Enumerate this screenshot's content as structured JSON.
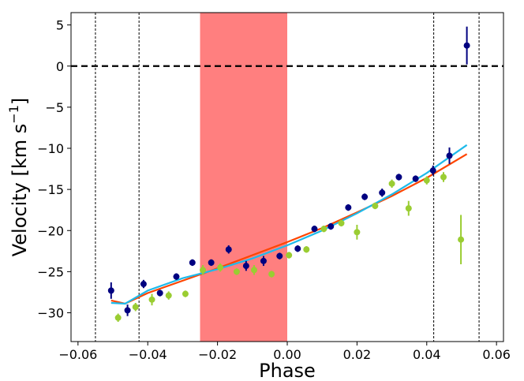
{
  "chart_data": {
    "type": "scatter",
    "xlabel": "Phase",
    "ylabel_main": "Velocity [km s",
    "ylabel_sup": "−1",
    "ylabel_close": "]",
    "xlim": [
      -0.062,
      0.062
    ],
    "ylim": [
      -33.5,
      6.5
    ],
    "grid": false,
    "x_ticks": [
      -0.06,
      -0.04,
      -0.02,
      0.0,
      0.02,
      0.04,
      0.06
    ],
    "x_tick_labels": [
      "−0.06",
      "−0.04",
      "−0.02",
      "0.00",
      "0.02",
      "0.04",
      "0.06"
    ],
    "y_ticks": [
      5,
      0,
      -5,
      -10,
      -15,
      -20,
      -25,
      -30
    ],
    "y_tick_labels": [
      "5",
      "0",
      "−5",
      "−10",
      "−15",
      "−20",
      "−25",
      "−30"
    ],
    "shaded_region": {
      "x": [
        -0.025,
        0.0
      ],
      "color": "#ff7f7f"
    },
    "vertical_lines": [
      -0.055,
      -0.0425,
      0.042,
      0.055
    ],
    "horizontal_line": 0,
    "colors": {
      "dark_blue": "#000080",
      "light_green": "#9acd32",
      "orange_model": "#ff4500",
      "cyan_model": "#1ebaea",
      "reference_line": "#000000"
    },
    "series": [
      {
        "marker": "circle",
        "color": "#000080",
        "points": [
          {
            "x": -0.0505,
            "y": -27.3,
            "err": 1.0
          },
          {
            "x": -0.0458,
            "y": -29.7,
            "err": 0.7
          },
          {
            "x": -0.0412,
            "y": -26.5,
            "err": 0.5
          },
          {
            "x": -0.0365,
            "y": -27.6,
            "err": 0.4
          },
          {
            "x": -0.0318,
            "y": -25.6,
            "err": 0.4
          },
          {
            "x": -0.0272,
            "y": -23.9,
            "err": 0.4
          },
          {
            "x": -0.0218,
            "y": -23.9,
            "err": 0.4
          },
          {
            "x": -0.0168,
            "y": -22.3,
            "err": 0.5
          },
          {
            "x": -0.0118,
            "y": -24.3,
            "err": 0.6
          },
          {
            "x": -0.0068,
            "y": -23.7,
            "err": 0.6
          },
          {
            "x": -0.0022,
            "y": -23.1,
            "err": 0.4
          },
          {
            "x": 0.003,
            "y": -22.2,
            "err": 0.4
          },
          {
            "x": 0.0078,
            "y": -19.8,
            "err": 0.4
          },
          {
            "x": 0.0125,
            "y": -19.5,
            "err": 0.4
          },
          {
            "x": 0.0175,
            "y": -17.2,
            "err": 0.4
          },
          {
            "x": 0.0222,
            "y": -15.9,
            "err": 0.4
          },
          {
            "x": 0.0272,
            "y": -15.4,
            "err": 0.5
          },
          {
            "x": 0.032,
            "y": -13.5,
            "err": 0.4
          },
          {
            "x": 0.0368,
            "y": -13.7,
            "err": 0.4
          },
          {
            "x": 0.0418,
            "y": -12.7,
            "err": 0.6
          },
          {
            "x": 0.0465,
            "y": -10.9,
            "err": 1.0
          },
          {
            "x": 0.0515,
            "y": 2.5,
            "err": 2.3
          }
        ]
      },
      {
        "marker": "circle",
        "color": "#9acd32",
        "points": [
          {
            "x": -0.0485,
            "y": -30.6,
            "err": 0.5
          },
          {
            "x": -0.0435,
            "y": -29.3,
            "err": 0.5
          },
          {
            "x": -0.0388,
            "y": -28.4,
            "err": 0.7
          },
          {
            "x": -0.034,
            "y": -27.9,
            "err": 0.5
          },
          {
            "x": -0.0292,
            "y": -27.7,
            "err": 0.4
          },
          {
            "x": -0.0242,
            "y": -24.8,
            "err": 0.6
          },
          {
            "x": -0.0192,
            "y": -24.5,
            "err": 0.5
          },
          {
            "x": -0.0145,
            "y": -25.0,
            "err": 0.4
          },
          {
            "x": -0.0095,
            "y": -24.8,
            "err": 0.6
          },
          {
            "x": -0.0045,
            "y": -25.3,
            "err": 0.4
          },
          {
            "x": 0.0005,
            "y": -23.0,
            "err": 0.4
          },
          {
            "x": 0.0055,
            "y": -22.3,
            "err": 0.4
          },
          {
            "x": 0.0105,
            "y": -19.8,
            "err": 0.4
          },
          {
            "x": 0.0155,
            "y": -19.1,
            "err": 0.4
          },
          {
            "x": 0.02,
            "y": -20.2,
            "err": 0.9
          },
          {
            "x": 0.0252,
            "y": -17.0,
            "err": 0.4
          },
          {
            "x": 0.03,
            "y": -14.3,
            "err": 0.5
          },
          {
            "x": 0.0348,
            "y": -17.3,
            "err": 0.9
          },
          {
            "x": 0.04,
            "y": -13.9,
            "err": 0.5
          },
          {
            "x": 0.0448,
            "y": -13.5,
            "err": 0.6
          },
          {
            "x": 0.0498,
            "y": -21.1,
            "err": 3.0
          }
        ]
      }
    ],
    "models": [
      {
        "color": "#ff4500",
        "points": [
          [
            -0.0505,
            -28.5
          ],
          [
            -0.0465,
            -28.9
          ],
          [
            -0.04,
            -27.6
          ],
          [
            -0.03,
            -26.1
          ],
          [
            -0.02,
            -24.6
          ],
          [
            -0.01,
            -23.0
          ],
          [
            0.0,
            -21.4
          ],
          [
            0.01,
            -19.7
          ],
          [
            0.02,
            -17.8
          ],
          [
            0.03,
            -15.8
          ],
          [
            0.04,
            -13.6
          ],
          [
            0.0515,
            -10.7
          ]
        ]
      },
      {
        "color": "#1ebaea",
        "points": [
          [
            -0.0505,
            -28.8
          ],
          [
            -0.0465,
            -28.9
          ],
          [
            -0.04,
            -27.3
          ],
          [
            -0.03,
            -25.8
          ],
          [
            -0.02,
            -24.7
          ],
          [
            -0.01,
            -23.4
          ],
          [
            0.0,
            -21.8
          ],
          [
            0.01,
            -20.0
          ],
          [
            0.02,
            -17.9
          ],
          [
            0.03,
            -15.6
          ],
          [
            0.04,
            -13.0
          ],
          [
            0.0515,
            -9.6
          ]
        ]
      }
    ]
  }
}
